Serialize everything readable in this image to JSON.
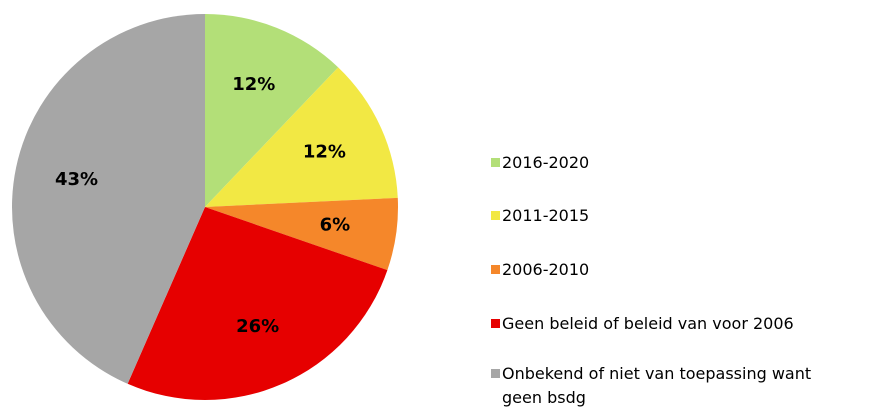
{
  "chart_data": {
    "type": "pie",
    "categories": [
      "2016-2020",
      "2011-2015",
      "2006-2010",
      "Geen beleid of beleid van voor 2006",
      "Onbekend of niet van toepassing want geen bsdg"
    ],
    "values": [
      12,
      12,
      6,
      26,
      43
    ],
    "value_labels": [
      "12%",
      "12%",
      "6%",
      "26%",
      "43%"
    ],
    "colors": [
      "#b3df78",
      "#f2e844",
      "#f5872a",
      "#e60000",
      "#a6a6a6"
    ],
    "legend": "right"
  }
}
